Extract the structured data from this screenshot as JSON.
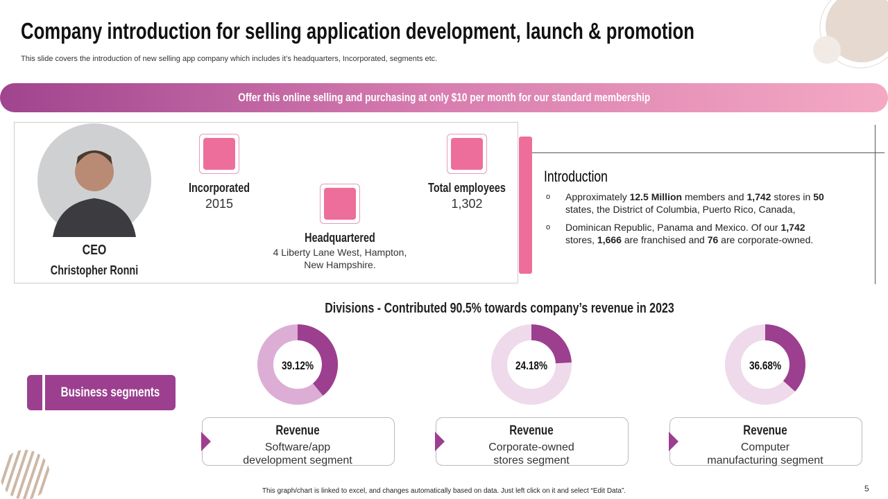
{
  "title": "Company introduction for selling application development, launch & promotion",
  "subtitle": "This slide covers the introduction of new selling app company which includes it’s headquarters, Incorporated, segments etc.",
  "banner": "Offer this online selling and purchasing at only $10 per month for our standard membership",
  "profile": {
    "role": "CEO",
    "name": "Christopher Ronni"
  },
  "facts": [
    {
      "label": "Incorporated",
      "value": "2015"
    },
    {
      "label": "Headquartered",
      "value": [
        "4 Liberty Lane West, Hampton,",
        "New Hampshire."
      ]
    },
    {
      "label": "Total employees",
      "value": "1,302"
    }
  ],
  "introduction": {
    "heading": "Introduction",
    "bullets": [
      [
        "Approximately ",
        "12.5 Million",
        " members and ",
        "1,742",
        " stores in ",
        "50",
        " states, the District of Columbia, Puerto Rico, Canada,"
      ],
      [
        "Dominican Republic, Panama and Mexico. Of our ",
        "1,742",
        "\nstores, ",
        "1,666",
        " are franchised and ",
        "76",
        " are corporate-owned."
      ]
    ]
  },
  "divisions": {
    "title": "Divisions  - Contributed 90.5% towards company’s revenue in 2023",
    "segments_label": "Business segments",
    "color": "#9c3f8f",
    "items": [
      {
        "value": 39.12,
        "value_label": "39.12%",
        "track_color": "#dcaed6",
        "heading": "Revenue",
        "desc": [
          "Software/app",
          "development segment"
        ]
      },
      {
        "value": 24.18,
        "value_label": "24.18%",
        "track_color": "#eedaeb",
        "heading": "Revenue",
        "desc": [
          "Corporate-owned",
          "stores segment"
        ]
      },
      {
        "value": 36.68,
        "value_label": "36.68%",
        "track_color": "#eedaeb",
        "heading": "Revenue",
        "desc": [
          "Computer",
          "manufacturing segment"
        ]
      }
    ]
  },
  "footer": "This graph/chart is linked to excel, and changes automatically based on data. Just left click on it and select “Edit Data”.",
  "page_number": "5"
}
